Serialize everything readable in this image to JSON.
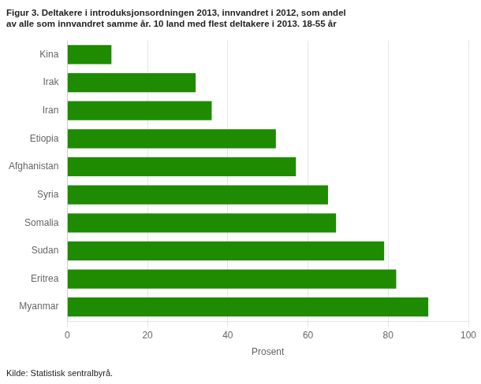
{
  "chart_data": {
    "type": "bar",
    "orientation": "horizontal",
    "title": "Figur 3. Deltakere i introduksjonsordningen 2013, innvandret i 2012, som andel\nav alle som innvandret samme år. 10 land med flest deltakere i 2013. 18-55 år",
    "annotations": [
      "Kilde: Statistisk sentralbyrå."
    ],
    "categories": [
      "Myanmar",
      "Eritrea",
      "Sudan",
      "Somalia",
      "Syria",
      "Afghanistan",
      "Etiopia",
      "Iran",
      "Irak",
      "Kina"
    ],
    "values": [
      90,
      82,
      79,
      67,
      65,
      57,
      52,
      36,
      32,
      11
    ],
    "color": "#1e8b00",
    "xlabel": "Prosent",
    "xlim": [
      0,
      100
    ],
    "xticks": [
      0,
      20,
      40,
      60,
      80,
      100
    ],
    "grid": "x"
  }
}
